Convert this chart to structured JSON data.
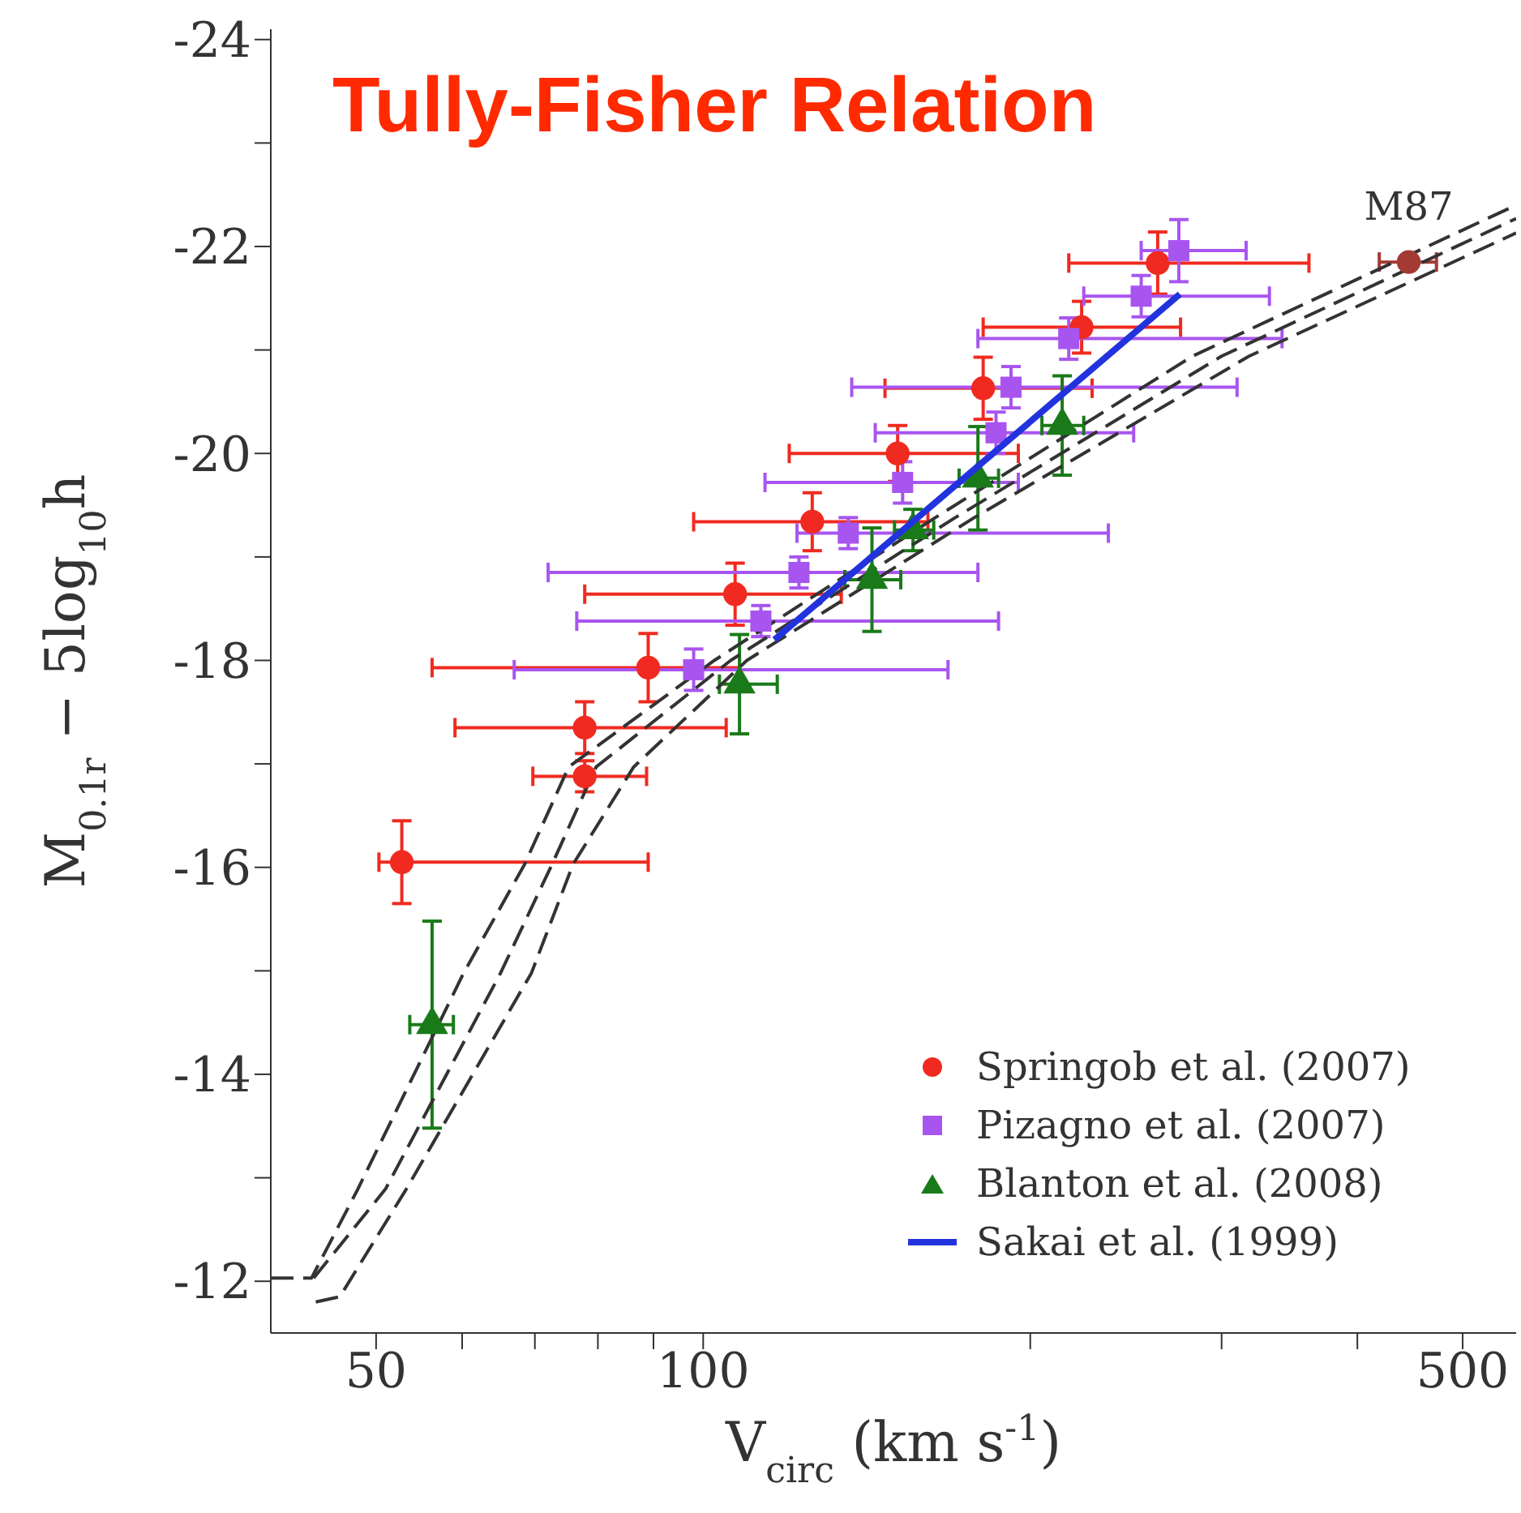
{
  "chart_data": {
    "type": "scatter",
    "title": "Tully-Fisher Relation",
    "xlabel": "V$_{circ}$ (km s$^{-1}$)",
    "ylabel": "M$_{0.1r}$ − 5log$_{10}$h",
    "log": "x",
    "legend": "bottom right",
    "xlim": [
      40,
      560
    ],
    "xticks": [
      50,
      {
        "value": 60,
        "label": null
      },
      {
        "value": 70,
        "label": null
      },
      {
        "value": 80,
        "label": null
      },
      {
        "value": 90,
        "label": null
      },
      100,
      {
        "value": 200,
        "label": null
      },
      {
        "value": 300,
        "label": null
      },
      {
        "value": 400,
        "label": null
      },
      500
    ],
    "ylim": [
      -11.5,
      -24.1
    ],
    "yticks": [
      -24,
      {
        "value": -23,
        "label": null
      },
      -22,
      {
        "value": -21,
        "label": null
      },
      -20,
      {
        "value": -19,
        "label": null
      },
      -18,
      {
        "value": -17,
        "label": null
      },
      -16,
      {
        "value": -15,
        "label": null
      },
      -14,
      {
        "value": -13,
        "label": null
      },
      -12
    ],
    "annotations": [
      {
        "text": "M87",
        "x": 446,
        "y": -21.85
      }
    ],
    "series": [
      {
        "type": "line",
        "color": "#333333",
        "line_style": "dashed",
        "x": [
          40,
          43.6,
          48.1,
          60.2,
          68.5,
          75.2,
          102.4,
          163,
          282,
          560
        ],
        "values": [
          -12.03,
          -12.03,
          -12.89,
          -14.98,
          -16.03,
          -16.97,
          -18.0,
          -19.37,
          -20.94,
          -22.4
        ]
      },
      {
        "type": "line",
        "color": "#333333",
        "line_style": "dashed",
        "x": [
          43.8,
          51.0,
          65.1,
          72.6,
          79.7,
          106,
          170,
          300,
          560
        ],
        "values": [
          -12.03,
          -12.89,
          -14.98,
          -16.03,
          -16.97,
          -18.0,
          -19.37,
          -20.94,
          -22.27
        ]
      },
      {
        "type": "line",
        "color": "#333333",
        "line_style": "dashed",
        "x": [
          44,
          46.3,
          53.3,
          69.5,
          75.9,
          86.3,
          109.7,
          177,
          318,
          560
        ],
        "values": [
          -11.8,
          -11.85,
          -12.89,
          -14.98,
          -16.03,
          -16.97,
          -18.0,
          -19.37,
          -20.94,
          -22.13
        ]
      },
      {
        "name": "Springob et al. (2007)",
        "color": "#f02a20",
        "marker": "circle",
        "x": [
          52.8,
          77.8,
          77.8,
          89,
          107,
          126,
          151,
          181,
          223,
          262
        ],
        "values": [
          -16.05,
          -16.88,
          -17.35,
          -17.93,
          -18.64,
          -19.34,
          -20.0,
          -20.63,
          -21.22,
          -21.84
        ],
        "errors": [
          0.4,
          0.15,
          0.25,
          0.33,
          0.3,
          0.28,
          0.27,
          0.3,
          0.25,
          0.3
        ],
        "xerrors": [
          [
            50.3,
            89
          ],
          [
            69.7,
            88.7
          ],
          [
            59.1,
            105
          ],
          [
            56.3,
            108
          ],
          [
            77.8,
            134
          ],
          [
            98,
            161
          ],
          [
            120,
            195
          ],
          [
            147,
            228
          ],
          [
            181,
            275
          ],
          [
            217,
            361
          ]
        ]
      },
      {
        "name": "Pizagno et al. (2007)",
        "color": "#a855f0",
        "marker": "square",
        "x": [
          98,
          113,
          122.5,
          136,
          152.6,
          186,
          192,
          217,
          253,
          274
        ],
        "values": [
          -17.91,
          -18.38,
          -18.85,
          -19.23,
          -19.72,
          -20.2,
          -20.64,
          -21.11,
          -21.52,
          -21.96
        ],
        "errors": [
          0.2,
          0.15,
          0.15,
          0.15,
          0.2,
          0.2,
          0.2,
          0.2,
          0.2,
          0.3
        ],
        "xerrors": [
          [
            67,
            168
          ],
          [
            76.5,
            187
          ],
          [
            72,
            179
          ],
          [
            122,
            236
          ],
          [
            114,
            195
          ],
          [
            144,
            249
          ],
          [
            137,
            310
          ],
          [
            179,
            341
          ],
          [
            224,
            332
          ],
          [
            253,
            316
          ]
        ]
      },
      {
        "name": "Blanton et al. (2008)",
        "color": "#1a7a1a",
        "marker": "triangle",
        "x": [
          56.3,
          108,
          143,
          156,
          179,
          214
        ],
        "values": [
          -14.48,
          -17.77,
          -18.78,
          -19.26,
          -19.76,
          -20.27
        ],
        "errors": [
          1.0,
          0.48,
          0.5,
          0.2,
          0.5,
          0.48
        ],
        "xerrors": [
          [
            53.7,
            58.9
          ],
          [
            103.5,
            117
          ],
          [
            135,
            152
          ],
          [
            150,
            163
          ],
          [
            172,
            187
          ],
          [
            205,
            224
          ]
        ]
      },
      {
        "type": "line",
        "name": "Sakai et al. (1999)",
        "color": "#2233dd",
        "line_style": "solid",
        "x": [
          116.3,
          274.6
        ],
        "values": [
          -18.2,
          -21.54
        ]
      },
      {
        "color": "#a33a33",
        "marker": "circle",
        "x": [
          446
        ],
        "values": [
          -21.85
        ],
        "xerrors": [
          [
            419,
            473
          ]
        ]
      }
    ]
  }
}
